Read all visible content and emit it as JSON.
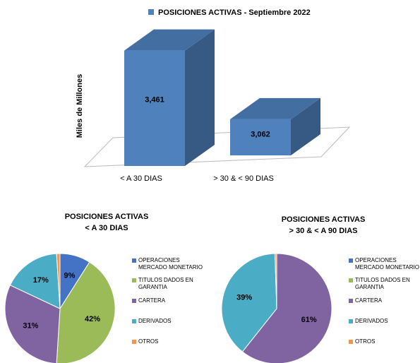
{
  "chart_data": [
    {
      "type": "bar3d",
      "title": "POSICIONES ACTIVAS  -  Septiembre 2022",
      "y_label": "Miles de Millones",
      "categories": [
        "< A 30 DIAS",
        "> 30 & < 90 DIAS"
      ],
      "values": [
        3461,
        3062
      ],
      "value_labels": [
        "3,461",
        "3,062"
      ],
      "color": "#4f81bd",
      "ylim": [
        2880,
        3520
      ]
    },
    {
      "type": "pie",
      "title": "POSICIONES ACTIVAS",
      "subtitle": "< A 30 DIAS",
      "categories": [
        "OPERACIONES MERCADO MONETARIO",
        "TITULOS DADOS EN GARANTIA",
        "CARTERA",
        "DERIVADOS",
        "OTROS"
      ],
      "values": [
        9,
        42,
        31,
        17,
        1
      ],
      "value_labels": [
        "9%",
        "42%",
        "31%",
        "17%",
        null
      ],
      "colors": [
        "#4472c4",
        "#9bbb59",
        "#8064a2",
        "#4bacc6",
        "#f79646"
      ]
    },
    {
      "type": "pie",
      "title": "POSICIONES ACTIVAS",
      "subtitle": "> 30 & < A 90 DIAS",
      "categories": [
        "OPERACIONES MERCADO MONETARIO",
        "TITULOS DADOS EN GARANTIA",
        "CARTERA",
        "DERIVADOS",
        "OTROS"
      ],
      "values": [
        0,
        0,
        61,
        39,
        0.5
      ],
      "value_labels": [
        null,
        null,
        "61%",
        "39%",
        null
      ],
      "colors": [
        "#4472c4",
        "#9bbb59",
        "#8064a2",
        "#4bacc6",
        "#f79646"
      ]
    }
  ]
}
